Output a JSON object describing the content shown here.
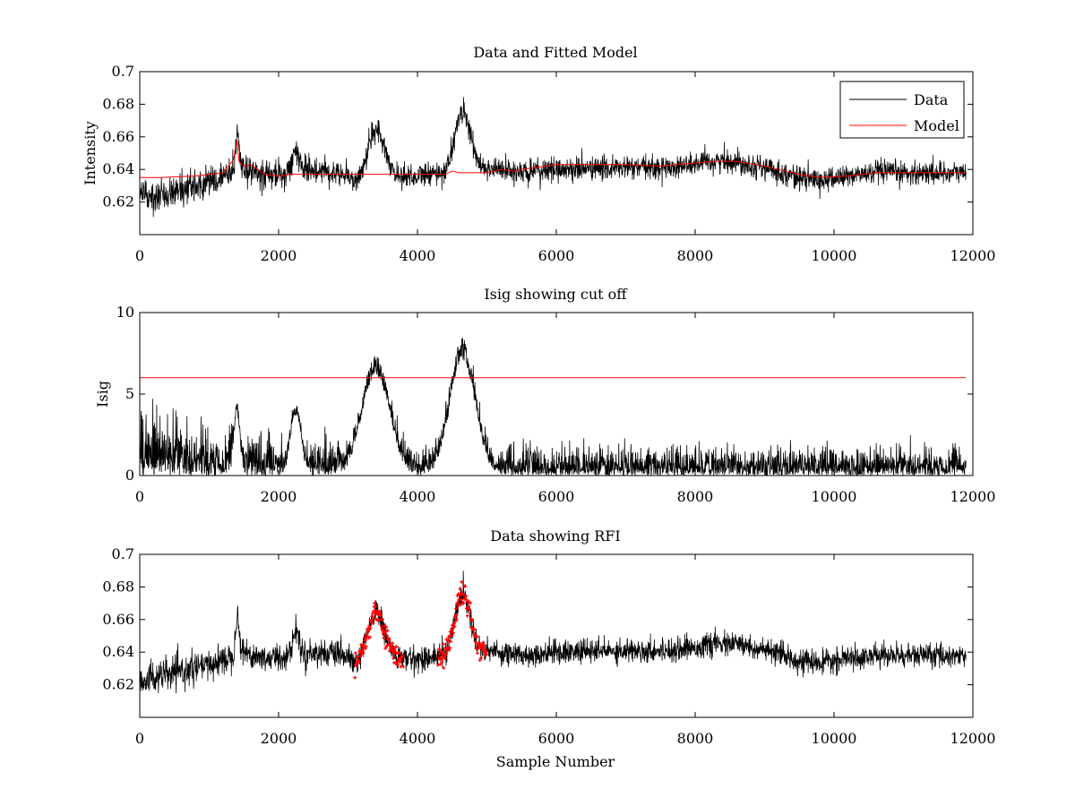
{
  "figure": {
    "background": "#ffffff"
  },
  "colors": {
    "data": "#000000",
    "model": "#ff0000",
    "rfi": "#ff0000",
    "cutoff": "#ff0000"
  },
  "chart_data": [
    {
      "type": "line",
      "title": "Data and Fitted Model",
      "xlabel": "",
      "ylabel": "Intensity",
      "xlim": [
        0,
        12000
      ],
      "ylim": [
        0.6,
        0.7
      ],
      "xticks": [
        0,
        2000,
        4000,
        6000,
        8000,
        10000,
        12000
      ],
      "xtick_labels": [
        "0",
        "2000",
        "4000",
        "6000",
        "8000",
        "10000",
        "12000"
      ],
      "yticks": [
        0.62,
        0.64,
        0.66,
        0.68,
        0.7
      ],
      "ytick_labels": [
        "0.62",
        "0.64",
        "0.66",
        "0.68",
        "0.7"
      ],
      "legend": {
        "position": "top-right",
        "entries": [
          "Data",
          "Model"
        ]
      },
      "series": [
        {
          "name": "Data",
          "kind": "noisy-signal",
          "color": "#000000",
          "x_end": 11900,
          "noise": 0.0045
        },
        {
          "name": "Model",
          "color": "#ff0000",
          "x": [
            0,
            300,
            800,
            1200,
            1350,
            1400,
            1430,
            1500,
            1600,
            1800,
            2000,
            2200,
            2400,
            2800,
            3200,
            3600,
            4000,
            4300,
            4400,
            4500,
            4600,
            5000,
            5200,
            5400,
            5500,
            6000,
            6500,
            7000,
            7500,
            8000,
            8300,
            8600,
            9000,
            9500,
            9800,
            10200,
            10600,
            11000,
            11900
          ],
          "y": [
            0.635,
            0.635,
            0.636,
            0.638,
            0.646,
            0.658,
            0.645,
            0.642,
            0.643,
            0.637,
            0.636,
            0.637,
            0.637,
            0.637,
            0.637,
            0.637,
            0.637,
            0.637,
            0.637,
            0.639,
            0.638,
            0.638,
            0.64,
            0.639,
            0.64,
            0.643,
            0.643,
            0.643,
            0.642,
            0.644,
            0.645,
            0.645,
            0.642,
            0.637,
            0.635,
            0.636,
            0.638,
            0.638,
            0.638
          ]
        }
      ]
    },
    {
      "type": "line",
      "title": "Isig showing cut off",
      "xlabel": "",
      "ylabel": "Isig",
      "xlim": [
        0,
        12000
      ],
      "ylim": [
        0,
        10
      ],
      "xticks": [
        0,
        2000,
        4000,
        6000,
        8000,
        10000,
        12000
      ],
      "xtick_labels": [
        "0",
        "2000",
        "4000",
        "6000",
        "8000",
        "10000",
        "12000"
      ],
      "yticks": [
        0,
        5,
        10
      ],
      "ytick_labels": [
        "0",
        "5",
        "10"
      ],
      "series": [
        {
          "name": "Isig",
          "kind": "noisy-abs",
          "color": "#000000",
          "x_end": 11900
        },
        {
          "name": "Cut off",
          "color": "#ff0000",
          "x": [
            0,
            11900
          ],
          "y": [
            6,
            6
          ]
        }
      ]
    },
    {
      "type": "line",
      "title": "Data showing RFI",
      "xlabel": "Sample Number",
      "ylabel": "",
      "xlim": [
        0,
        12000
      ],
      "ylim": [
        0.6,
        0.7
      ],
      "xticks": [
        0,
        2000,
        4000,
        6000,
        8000,
        10000,
        12000
      ],
      "xtick_labels": [
        "0",
        "2000",
        "4000",
        "6000",
        "8000",
        "10000",
        "12000"
      ],
      "yticks": [
        0.62,
        0.64,
        0.66,
        0.68,
        0.7
      ],
      "ytick_labels": [
        "0.62",
        "0.64",
        "0.66",
        "0.68",
        "0.7"
      ],
      "series": [
        {
          "name": "Data",
          "kind": "noisy-signal",
          "color": "#000000",
          "x_end": 11900,
          "noise": 0.0045
        },
        {
          "name": "RFI",
          "kind": "flagged-points",
          "color": "#ff0000",
          "ranges": [
            [
              3100,
              3800
            ],
            [
              4300,
              5000
            ]
          ]
        }
      ]
    }
  ],
  "signal_model": {
    "baseline_x": [
      0,
      500,
      1000,
      1350,
      1420,
      1500,
      1800,
      2000,
      2600,
      3000,
      3100,
      3600,
      4000,
      4500,
      5000,
      5500,
      6000,
      7000,
      7500,
      8000,
      8300,
      8600,
      9000,
      9500,
      9800,
      10200,
      10600,
      11000,
      11900
    ],
    "baseline_y": [
      0.623,
      0.627,
      0.632,
      0.638,
      0.646,
      0.64,
      0.636,
      0.637,
      0.64,
      0.637,
      0.631,
      0.636,
      0.636,
      0.638,
      0.641,
      0.638,
      0.64,
      0.641,
      0.641,
      0.643,
      0.645,
      0.645,
      0.641,
      0.635,
      0.633,
      0.636,
      0.638,
      0.638,
      0.638
    ],
    "peaks": [
      {
        "center": 1400,
        "width": 25,
        "height": 0.018
      },
      {
        "center": 2250,
        "width": 45,
        "height": 0.015
      },
      {
        "center": 3400,
        "width": 120,
        "height": 0.03
      },
      {
        "center": 4650,
        "width": 110,
        "height": 0.037
      }
    ]
  }
}
